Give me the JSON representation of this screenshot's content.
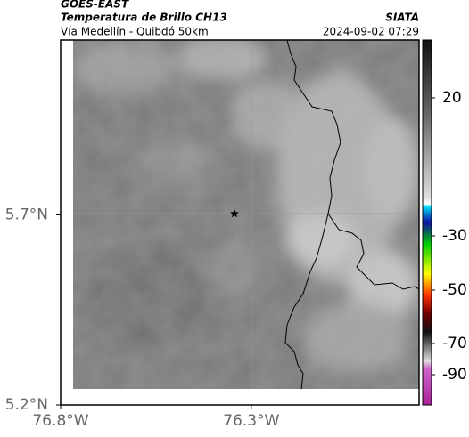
{
  "header": {
    "source": "GOES-EAST",
    "product": "Temperatura de Brillo CH13",
    "agency": "SIATA",
    "route": "Vía Medellín - Quibdó 50km",
    "timestamp": "2024-09-02 07:29"
  },
  "map": {
    "xlim": [
      -76.8,
      -75.86
    ],
    "ylim": [
      5.2,
      6.16
    ],
    "xticks": [
      {
        "value": -76.8,
        "label": "76.8°W"
      },
      {
        "value": -76.3,
        "label": "76.3°W"
      }
    ],
    "yticks": [
      {
        "value": 5.7,
        "label": "5.7°N"
      },
      {
        "value": 5.2,
        "label": "5.2°N"
      }
    ]
  },
  "colorbar": {
    "ticks": [
      20,
      -30,
      -50,
      -70,
      -90
    ]
  }
}
